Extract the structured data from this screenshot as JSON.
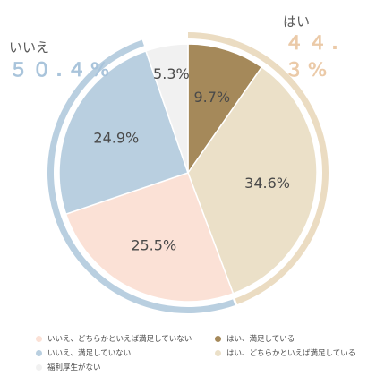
{
  "chart_data": {
    "type": "pie",
    "start": "top",
    "direction": "clockwise",
    "slices": [
      {
        "label": "はい、満足している",
        "value": 9.7,
        "value_label": "9.7%",
        "color": "#a5895a"
      },
      {
        "label": "はい、どちらかといえば満足している",
        "value": 34.6,
        "value_label": "34.6%",
        "color": "#ebe0c8"
      },
      {
        "label": "いいえ、どちらかといえば満足していない",
        "value": 25.5,
        "value_label": "25.5%",
        "color": "#fbe1d6"
      },
      {
        "label": "いいえ、満足していない",
        "value": 24.9,
        "value_label": "24.9%",
        "color": "#b9cfe0"
      },
      {
        "label": "福利厚生がない",
        "value": 5.3,
        "value_label": "5.3%",
        "color": "#f1f1f1"
      }
    ],
    "groups": [
      {
        "label": "はい",
        "value": 44.3,
        "value_label": "４４.３%",
        "color": "#ebdcc2",
        "text_color": "#ebcaa8"
      },
      {
        "label": "いいえ",
        "value": 50.4,
        "value_label": "５０.４%",
        "color": "#b9cfe0",
        "text_color": "#a9c4db"
      }
    ],
    "legend": {
      "placement": "bottom",
      "order": [
        2,
        0,
        3,
        1,
        4
      ]
    }
  }
}
